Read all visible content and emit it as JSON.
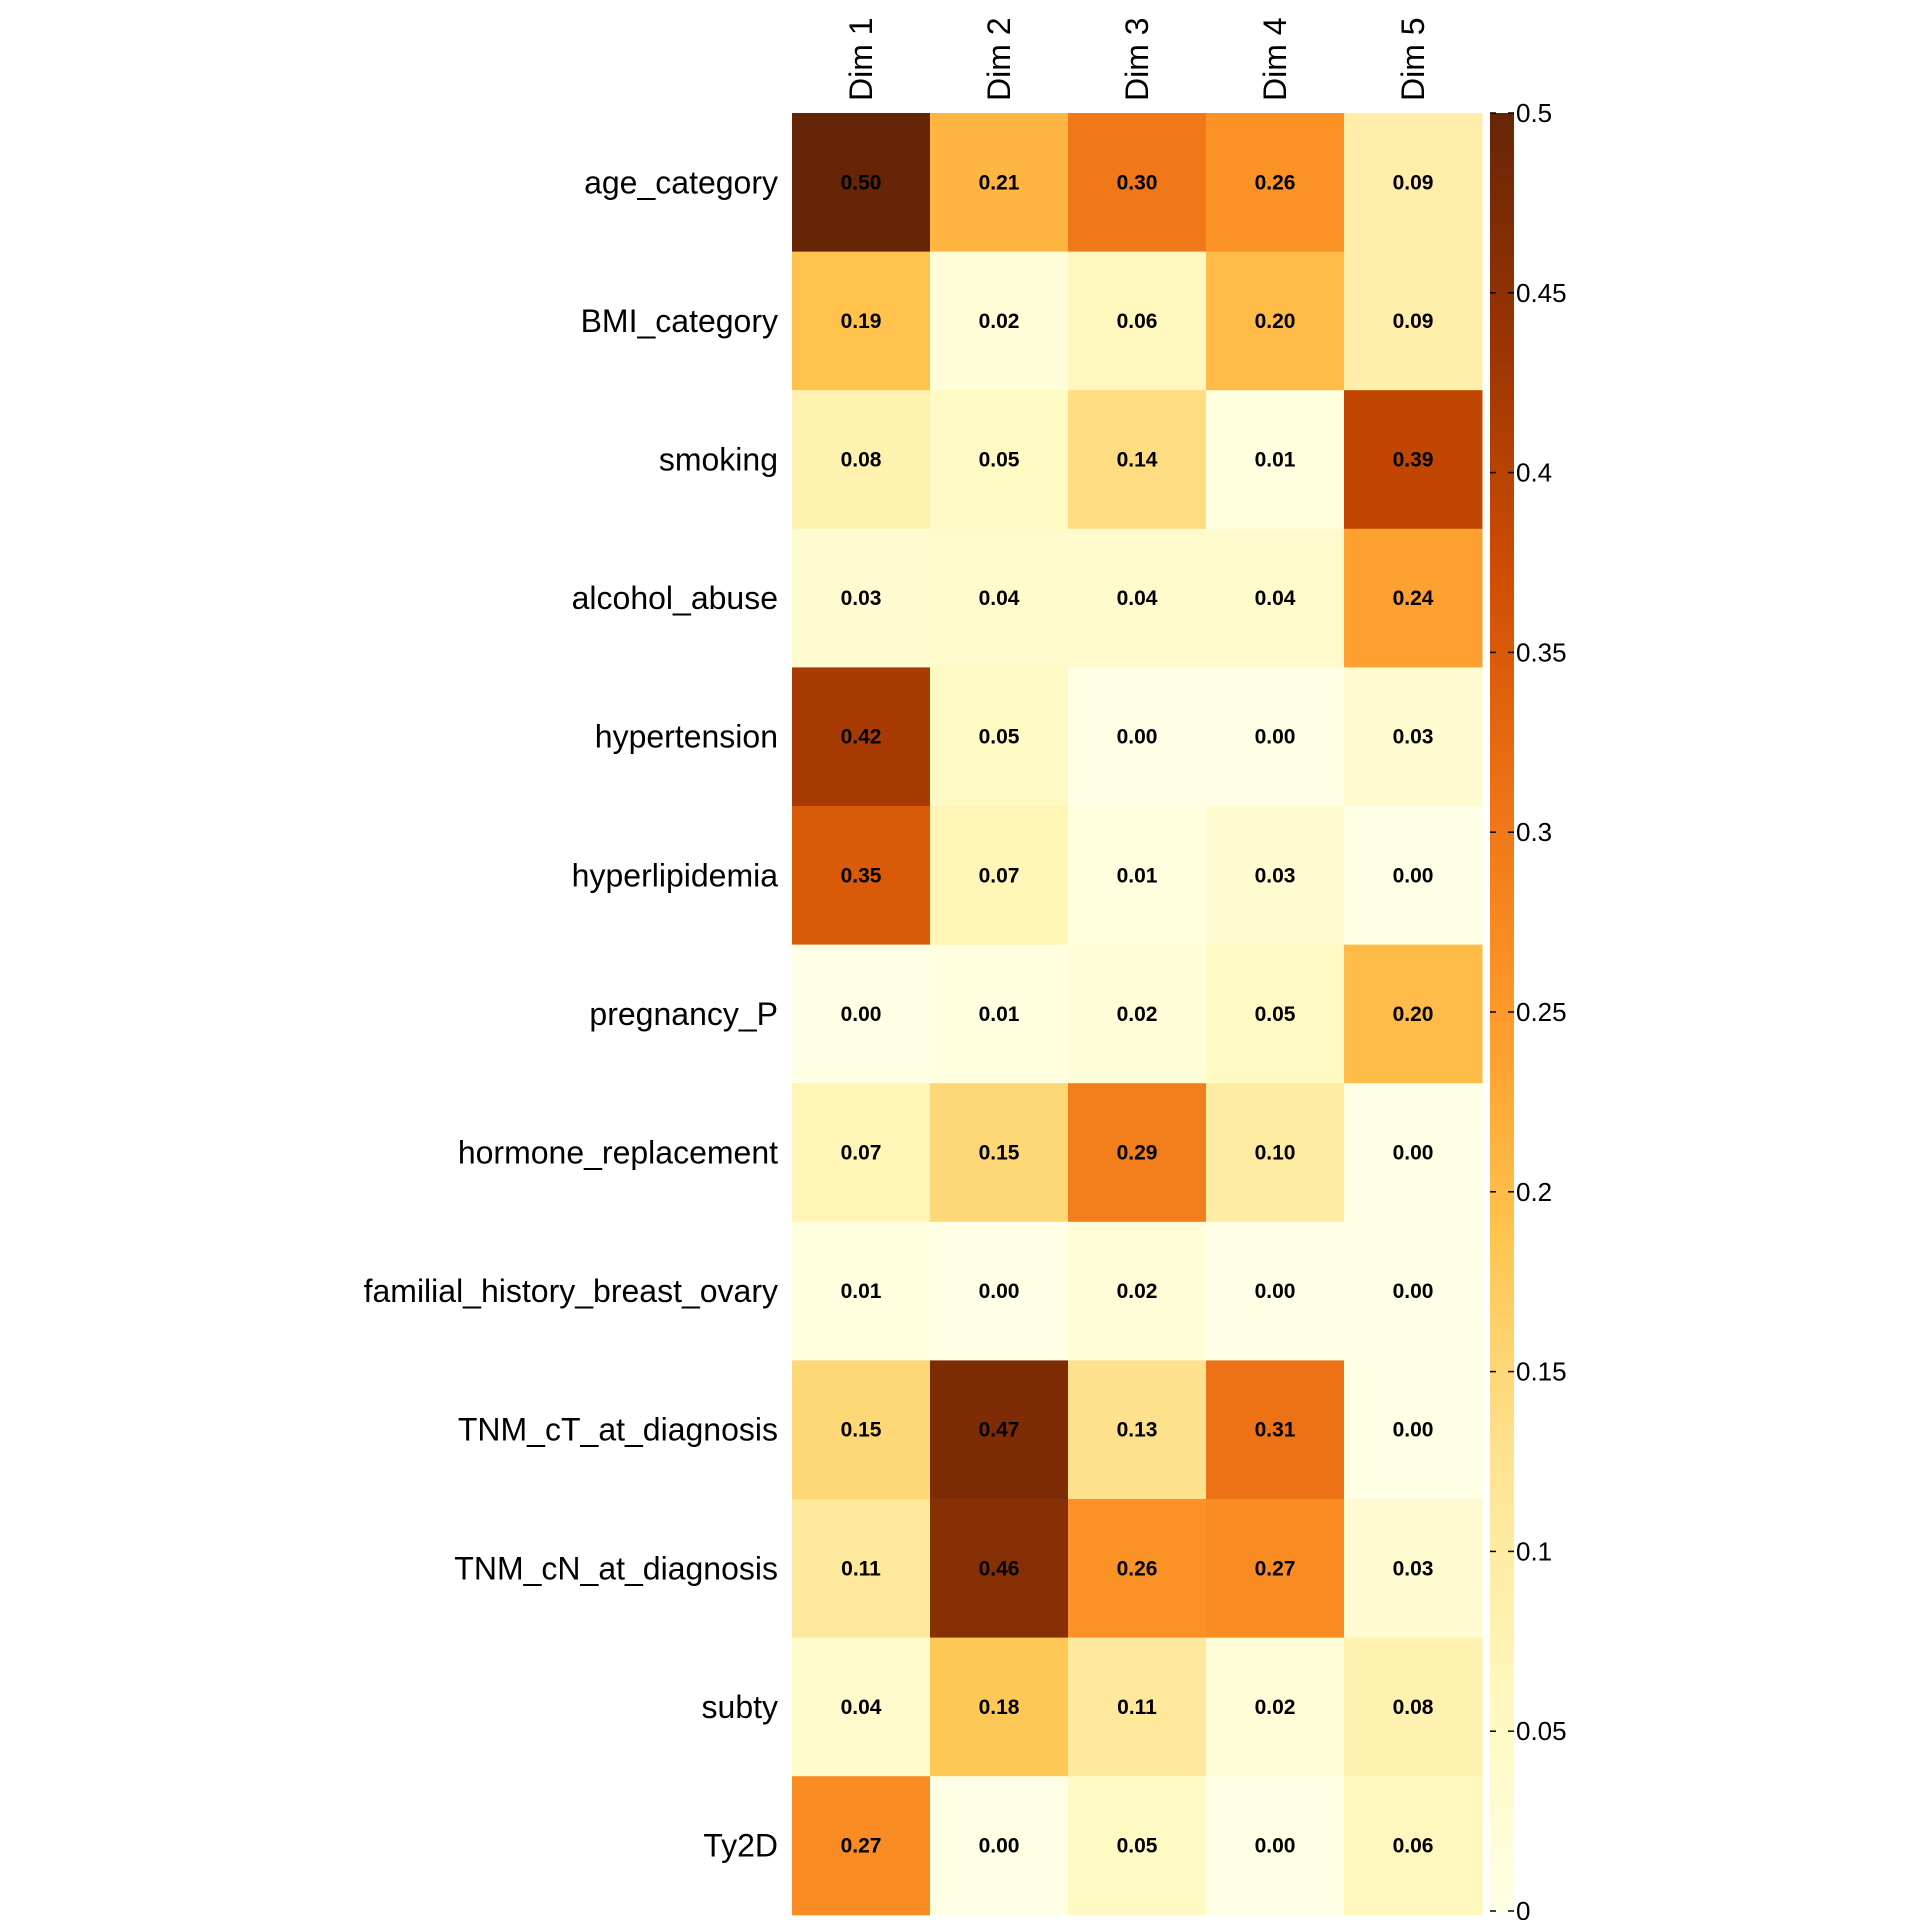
{
  "chart_data": {
    "type": "heatmap",
    "title": "",
    "xlabel": "",
    "ylabel": "",
    "columns": [
      "Dim 1",
      "Dim 2",
      "Dim 3",
      "Dim 4",
      "Dim 5"
    ],
    "rows": [
      "age_category",
      "BMI_category",
      "smoking",
      "alcohol_abuse",
      "hypertension",
      "hyperlipidemia",
      "pregnancy_P",
      "hormone_replacement",
      "familial_history_breast_ovary",
      "TNM_cT_at_diagnosis",
      "TNM_cN_at_diagnosis",
      "subty",
      "Ty2D"
    ],
    "values": [
      [
        0.5,
        0.21,
        0.3,
        0.26,
        0.09
      ],
      [
        0.19,
        0.02,
        0.06,
        0.2,
        0.09
      ],
      [
        0.08,
        0.05,
        0.14,
        0.01,
        0.39
      ],
      [
        0.03,
        0.04,
        0.04,
        0.04,
        0.24
      ],
      [
        0.42,
        0.05,
        0.0,
        0.0,
        0.03
      ],
      [
        0.35,
        0.07,
        0.01,
        0.03,
        0.0
      ],
      [
        0.0,
        0.01,
        0.02,
        0.05,
        0.2
      ],
      [
        0.07,
        0.15,
        0.29,
        0.1,
        0.0
      ],
      [
        0.01,
        0.0,
        0.02,
        0.0,
        0.0
      ],
      [
        0.15,
        0.47,
        0.13,
        0.31,
        0.0
      ],
      [
        0.11,
        0.46,
        0.26,
        0.27,
        0.03
      ],
      [
        0.04,
        0.18,
        0.11,
        0.02,
        0.08
      ],
      [
        0.27,
        0.0,
        0.05,
        0.0,
        0.06
      ]
    ],
    "value_range": [
      0,
      0.5
    ],
    "colorbar": {
      "ticks": [
        0,
        0.05,
        0.1,
        0.15,
        0.2,
        0.25,
        0.3,
        0.35,
        0.4,
        0.45,
        0.5
      ],
      "tick_labels": [
        "0",
        "0.05",
        "0.1",
        "0.15",
        "0.2",
        "0.25",
        "0.3",
        "0.35",
        "0.4",
        "0.45",
        "0.5"
      ],
      "position": "right"
    },
    "color_scale": [
      "#FFFFE5",
      "#FFF7BC",
      "#FEE391",
      "#FEC44F",
      "#FE9929",
      "#EC7014",
      "#CC4C02",
      "#993404",
      "#662506"
    ],
    "cell_label_format": "2 decimals"
  }
}
